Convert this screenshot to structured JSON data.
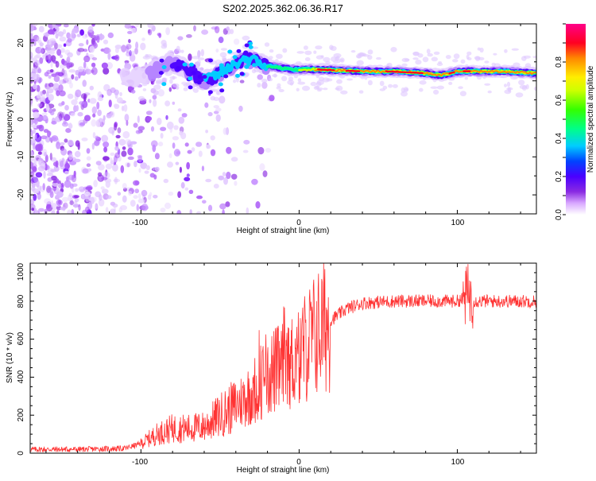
{
  "chart_data": [
    {
      "type": "heatmap",
      "title": "S202.2025.362.06.36.R17",
      "xlabel": "Height of straight line (km)",
      "ylabel": "Frequency (Hz)",
      "xlim": [
        -170,
        150
      ],
      "ylim": [
        -25,
        25
      ],
      "xticks": [
        "-100",
        "0",
        "100"
      ],
      "yticks": [
        "-20",
        "-10",
        "0",
        "10",
        "20"
      ],
      "colorbar": {
        "label": "Normalized spectral amplitude",
        "range": [
          0,
          1
        ],
        "ticks": [
          "0.0",
          "0.2",
          "0.4",
          "0.6",
          "0.8"
        ],
        "colors": [
          "#ffffff",
          "#d9a8ff",
          "#8a2be2",
          "#4a00ff",
          "#0044ff",
          "#00ccff",
          "#00ff66",
          "#66ff00",
          "#ffee00",
          "#ff8800",
          "#ff0022",
          "#ff0088"
        ]
      },
      "ridge": {
        "description_x": [
          -100,
          -80,
          -60,
          -45,
          -35,
          -20,
          -5,
          10,
          40,
          60,
          80,
          90,
          100,
          110,
          130,
          150
        ],
        "freq_hz": [
          11,
          15,
          10,
          13,
          16,
          14,
          13,
          13,
          12.5,
          12.5,
          12,
          11.5,
          12.5,
          12.5,
          12.5,
          12
        ]
      }
    },
    {
      "type": "line",
      "xlabel": "Height of straight line (km)",
      "ylabel": "SNR (10 * v/v)",
      "xlim": [
        -170,
        150
      ],
      "ylim": [
        0,
        1000
      ],
      "xticks": [
        "-100",
        "0",
        "100"
      ],
      "yticks": [
        "0",
        "200",
        "400",
        "600",
        "800",
        "1000"
      ],
      "series": [
        {
          "name": "SNR",
          "color": "#ff3333",
          "x": [
            -170,
            -140,
            -110,
            -100,
            -90,
            -80,
            -70,
            -60,
            -50,
            -40,
            -30,
            -20,
            -10,
            0,
            10,
            20,
            30,
            40,
            60,
            80,
            100,
            105,
            107,
            110,
            120,
            150
          ],
          "values": [
            20,
            20,
            25,
            50,
            100,
            130,
            130,
            140,
            200,
            250,
            320,
            420,
            450,
            520,
            620,
            700,
            760,
            790,
            800,
            800,
            800,
            820,
            850,
            800,
            800,
            800
          ]
        }
      ]
    }
  ]
}
